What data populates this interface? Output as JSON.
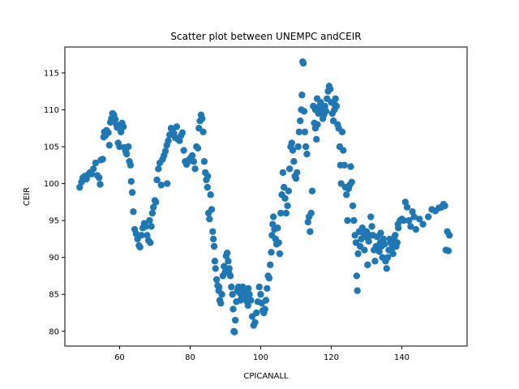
{
  "chart_data": {
    "type": "scatter",
    "title": "Scatter plot between UNEMPC andCEIR",
    "xlabel": "CPICANALL",
    "ylabel": "CEIR",
    "xlim": [
      44.5,
      158.5
    ],
    "ylim": [
      78.0,
      118.5
    ],
    "xticks": [
      60,
      80,
      100,
      120,
      140
    ],
    "yticks": [
      80,
      85,
      90,
      95,
      100,
      105,
      110,
      115
    ],
    "grid": false,
    "legend": "none",
    "marker_color": "#1f77b4",
    "points": [
      [
        48.7,
        99.5
      ],
      [
        49.2,
        100.2
      ],
      [
        49.6,
        100.8
      ],
      [
        50.1,
        101.0
      ],
      [
        50.6,
        100.6
      ],
      [
        51.1,
        101.2
      ],
      [
        51.6,
        101.5
      ],
      [
        52.1,
        101.3
      ],
      [
        52.6,
        102.0
      ],
      [
        53.2,
        102.8
      ],
      [
        53.7,
        101.1
      ],
      [
        54.2,
        100.8
      ],
      [
        54.5,
        99.9
      ],
      [
        54.7,
        103.2
      ],
      [
        55.2,
        103.3
      ],
      [
        55.5,
        106.3
      ],
      [
        55.7,
        107.0
      ],
      [
        56.0,
        106.5
      ],
      [
        56.3,
        107.2
      ],
      [
        56.8,
        106.9
      ],
      [
        57.1,
        105.2
      ],
      [
        57.4,
        108.3
      ],
      [
        57.7,
        108.8
      ],
      [
        58.0,
        109.5
      ],
      [
        58.4,
        109.3
      ],
      [
        58.8,
        108.7
      ],
      [
        59.1,
        108.0
      ],
      [
        59.3,
        107.6
      ],
      [
        59.6,
        105.5
      ],
      [
        60.0,
        105.0
      ],
      [
        60.4,
        107.0
      ],
      [
        60.7,
        108.2
      ],
      [
        61.1,
        107.7
      ],
      [
        61.4,
        104.9
      ],
      [
        61.7,
        104.4
      ],
      [
        62.0,
        104.0
      ],
      [
        62.5,
        105.0
      ],
      [
        62.8,
        103.0
      ],
      [
        63.1,
        102.5
      ],
      [
        63.3,
        100.3
      ],
      [
        63.6,
        98.8
      ],
      [
        63.9,
        96.2
      ],
      [
        64.3,
        93.8
      ],
      [
        64.7,
        93.2
      ],
      [
        65.1,
        92.5
      ],
      [
        65.5,
        91.6
      ],
      [
        65.8,
        91.4
      ],
      [
        66.2,
        93.0
      ],
      [
        66.6,
        94.0
      ],
      [
        67.0,
        94.6
      ],
      [
        67.4,
        94.2
      ],
      [
        67.8,
        93.0
      ],
      [
        68.2,
        92.3
      ],
      [
        68.5,
        95.0
      ],
      [
        68.7,
        92.0
      ],
      [
        69.0,
        94.2
      ],
      [
        69.3,
        96.0
      ],
      [
        69.6,
        96.8
      ],
      [
        70.0,
        97.7
      ],
      [
        70.3,
        97.5
      ],
      [
        70.6,
        100.5
      ],
      [
        71.0,
        102.0
      ],
      [
        71.4,
        102.8
      ],
      [
        71.8,
        99.8
      ],
      [
        72.2,
        103.3
      ],
      [
        72.6,
        103.8
      ],
      [
        73.0,
        104.4
      ],
      [
        73.4,
        105.2
      ],
      [
        73.8,
        105.8
      ],
      [
        74.2,
        106.6
      ],
      [
        74.6,
        107.5
      ],
      [
        75.0,
        107.2
      ],
      [
        75.4,
        106.8
      ],
      [
        75.8,
        106.2
      ],
      [
        76.2,
        107.7
      ],
      [
        76.6,
        106.0
      ],
      [
        77.0,
        105.8
      ],
      [
        77.4,
        106.5
      ],
      [
        77.8,
        106.9
      ],
      [
        78.2,
        104.5
      ],
      [
        78.6,
        103.0
      ],
      [
        79.0,
        102.6
      ],
      [
        79.4,
        103.0
      ],
      [
        79.8,
        103.3
      ],
      [
        80.2,
        103.5
      ],
      [
        80.6,
        103.8
      ],
      [
        81.0,
        103.0
      ],
      [
        81.4,
        102.0
      ],
      [
        81.8,
        105.0
      ],
      [
        82.2,
        104.8
      ],
      [
        82.5,
        107.5
      ],
      [
        82.8,
        108.5
      ],
      [
        83.1,
        109.3
      ],
      [
        83.4,
        108.8
      ],
      [
        83.7,
        107.0
      ],
      [
        84.0,
        103.0
      ],
      [
        84.3,
        101.5
      ],
      [
        84.6,
        100.5
      ],
      [
        84.9,
        99.5
      ],
      [
        85.2,
        96.0
      ],
      [
        85.5,
        95.2
      ],
      [
        85.8,
        98.5
      ],
      [
        86.1,
        96.5
      ],
      [
        86.4,
        93.5
      ],
      [
        86.6,
        92.5
      ],
      [
        86.8,
        91.5
      ],
      [
        87.0,
        89.5
      ],
      [
        87.2,
        88.5
      ],
      [
        87.5,
        87.0
      ],
      [
        87.8,
        86.2
      ],
      [
        88.1,
        85.5
      ],
      [
        88.4,
        84.2
      ],
      [
        88.7,
        83.8
      ],
      [
        89.0,
        85.0
      ],
      [
        89.3,
        87.5
      ],
      [
        89.6,
        88.8
      ],
      [
        89.9,
        88.0
      ],
      [
        90.2,
        90.2
      ],
      [
        90.5,
        90.6
      ],
      [
        90.8,
        89.5
      ],
      [
        91.1,
        88.5
      ],
      [
        91.4,
        87.5
      ],
      [
        91.7,
        86.0
      ],
      [
        92.0,
        85.0
      ],
      [
        92.2,
        83.0
      ],
      [
        92.4,
        80.0
      ],
      [
        92.6,
        79.9
      ],
      [
        92.8,
        81.5
      ],
      [
        93.1,
        84.0
      ],
      [
        93.4,
        85.5
      ],
      [
        93.7,
        86.0
      ],
      [
        94.0,
        85.2
      ],
      [
        94.3,
        84.2
      ],
      [
        94.6,
        84.5
      ],
      [
        94.9,
        86.0
      ],
      [
        95.2,
        85.5
      ],
      [
        95.5,
        84.6
      ],
      [
        95.8,
        84.9
      ],
      [
        96.1,
        84.0
      ],
      [
        96.4,
        83.5
      ],
      [
        96.8,
        85.0
      ],
      [
        97.2,
        84.2
      ],
      [
        97.6,
        82.0
      ],
      [
        98.0,
        80.8
      ],
      [
        98.4,
        81.2
      ],
      [
        98.8,
        82.5
      ],
      [
        99.2,
        84.0
      ],
      [
        99.6,
        86.0
      ],
      [
        100.0,
        85.0
      ],
      [
        100.3,
        83.8
      ],
      [
        100.6,
        82.8
      ],
      [
        100.9,
        82.5
      ],
      [
        101.2,
        83.0
      ],
      [
        101.5,
        84.2
      ],
      [
        101.8,
        85.8
      ],
      [
        102.1,
        87.5
      ],
      [
        102.4,
        87.2
      ],
      [
        102.7,
        89.0
      ],
      [
        103.0,
        90.7
      ],
      [
        103.2,
        93.0
      ],
      [
        103.4,
        94.5
      ],
      [
        103.6,
        95.5
      ],
      [
        103.9,
        93.8
      ],
      [
        104.2,
        92.5
      ],
      [
        104.5,
        91.8
      ],
      [
        104.8,
        94.0
      ],
      [
        105.1,
        92.0
      ],
      [
        105.4,
        90.5
      ],
      [
        105.7,
        96.0
      ],
      [
        106.0,
        98.5
      ],
      [
        106.3,
        101.5
      ],
      [
        106.6,
        99.5
      ],
      [
        106.9,
        98.0
      ],
      [
        107.2,
        96.0
      ],
      [
        107.6,
        97.0
      ],
      [
        107.9,
        99.0
      ],
      [
        108.2,
        102.0
      ],
      [
        108.5,
        105.0
      ],
      [
        108.8,
        105.5
      ],
      [
        109.1,
        104.5
      ],
      [
        109.4,
        103.0
      ],
      [
        109.7,
        101.0
      ],
      [
        110.0,
        100.7
      ],
      [
        110.3,
        101.5
      ],
      [
        110.6,
        105.0
      ],
      [
        110.9,
        107.0
      ],
      [
        111.2,
        108.5
      ],
      [
        111.5,
        110.0
      ],
      [
        111.7,
        112.0
      ],
      [
        111.9,
        116.5
      ],
      [
        112.1,
        116.3
      ],
      [
        112.3,
        109.8
      ],
      [
        112.5,
        107.0
      ],
      [
        112.8,
        105.0
      ],
      [
        113.1,
        104.0
      ],
      [
        113.4,
        94.8
      ],
      [
        113.7,
        95.5
      ],
      [
        114.0,
        93.5
      ],
      [
        114.3,
        96.0
      ],
      [
        114.6,
        99.0
      ],
      [
        114.9,
        110.5
      ],
      [
        115.2,
        108.2
      ],
      [
        115.5,
        107.5
      ],
      [
        115.8,
        106.0
      ],
      [
        116.1,
        108.0
      ],
      [
        116.4,
        109.5
      ],
      [
        116.7,
        110.5
      ],
      [
        117.0,
        111.0
      ],
      [
        117.3,
        110.0
      ],
      [
        117.6,
        108.8
      ],
      [
        117.9,
        109.3
      ],
      [
        118.2,
        110.5
      ],
      [
        118.5,
        109.8
      ],
      [
        118.8,
        111.5
      ],
      [
        119.1,
        112.5
      ],
      [
        119.4,
        113.2
      ],
      [
        119.7,
        112.8
      ],
      [
        120.0,
        111.0
      ],
      [
        120.3,
        109.5
      ],
      [
        120.6,
        108.5
      ],
      [
        120.9,
        110.0
      ],
      [
        121.2,
        111.5
      ],
      [
        121.5,
        110.5
      ],
      [
        121.8,
        108.0
      ],
      [
        122.1,
        107.5
      ],
      [
        122.4,
        105.0
      ],
      [
        122.6,
        102.5
      ],
      [
        122.8,
        100.0
      ],
      [
        123.1,
        107.0
      ],
      [
        123.4,
        104.5
      ],
      [
        123.7,
        102.5
      ],
      [
        124.0,
        99.5
      ],
      [
        124.3,
        98.5
      ],
      [
        124.6,
        95.0
      ],
      [
        124.9,
        99.3
      ],
      [
        125.2,
        99.8
      ],
      [
        125.5,
        102.3
      ],
      [
        125.8,
        100.2
      ],
      [
        126.1,
        97.0
      ],
      [
        126.4,
        95.0
      ],
      [
        126.7,
        93.0
      ],
      [
        127.0,
        92.0
      ],
      [
        127.2,
        87.5
      ],
      [
        127.4,
        85.5
      ],
      [
        127.6,
        90.5
      ],
      [
        127.9,
        93.5
      ],
      [
        128.2,
        91.5
      ],
      [
        128.5,
        92.5
      ],
      [
        128.8,
        94.0
      ],
      [
        129.1,
        93.3
      ],
      [
        129.4,
        91.0
      ],
      [
        129.7,
        92.8
      ],
      [
        130.0,
        93.5
      ],
      [
        130.3,
        89.0
      ],
      [
        130.6,
        92.2
      ],
      [
        130.9,
        93.0
      ],
      [
        131.2,
        95.5
      ],
      [
        131.5,
        94.2
      ],
      [
        131.8,
        93.0
      ],
      [
        132.1,
        91.0
      ],
      [
        132.4,
        89.5
      ],
      [
        132.7,
        91.5
      ],
      [
        133.0,
        92.8
      ],
      [
        133.3,
        91.3
      ],
      [
        133.6,
        90.8
      ],
      [
        133.9,
        92.0
      ],
      [
        134.2,
        91.5
      ],
      [
        134.5,
        90.0
      ],
      [
        134.8,
        92.5
      ],
      [
        135.1,
        91.8
      ],
      [
        135.4,
        89.5
      ],
      [
        135.7,
        88.5
      ],
      [
        136.0,
        90.0
      ],
      [
        136.3,
        91.0
      ],
      [
        136.6,
        92.5
      ],
      [
        136.9,
        92.0
      ],
      [
        137.2,
        91.2
      ],
      [
        137.5,
        90.5
      ],
      [
        137.8,
        92.5
      ],
      [
        138.1,
        93.0
      ],
      [
        138.4,
        91.5
      ],
      [
        138.7,
        92.0
      ],
      [
        139.0,
        94.0
      ],
      [
        139.5,
        95.0
      ],
      [
        140.0,
        95.2
      ],
      [
        140.5,
        95.0
      ],
      [
        141.0,
        97.5
      ],
      [
        141.5,
        96.8
      ],
      [
        142.0,
        95.0
      ],
      [
        142.5,
        94.2
      ],
      [
        143.0,
        96.2
      ],
      [
        143.5,
        95.5
      ],
      [
        144.0,
        93.8
      ],
      [
        145.0,
        95.2
      ],
      [
        146.0,
        94.5
      ],
      [
        147.5,
        95.5
      ],
      [
        148.5,
        96.5
      ],
      [
        149.5,
        96.3
      ],
      [
        150.5,
        96.7
      ],
      [
        151.2,
        96.8
      ],
      [
        151.8,
        97.2
      ],
      [
        152.2,
        97.0
      ],
      [
        152.5,
        91.0
      ],
      [
        152.9,
        93.5
      ],
      [
        153.2,
        90.9
      ],
      [
        153.5,
        93.0
      ],
      [
        138.9,
        94.5
      ],
      [
        137.0,
        91.9
      ],
      [
        134.0,
        93.3
      ],
      [
        121.0,
        110.7
      ],
      [
        115.5,
        110.0
      ],
      [
        116.0,
        111.5
      ],
      [
        96.5,
        85.8
      ],
      [
        91.0,
        87.9
      ],
      [
        88.2,
        86.0
      ],
      [
        85.0,
        101.0
      ],
      [
        73.5,
        100.0
      ]
    ]
  }
}
